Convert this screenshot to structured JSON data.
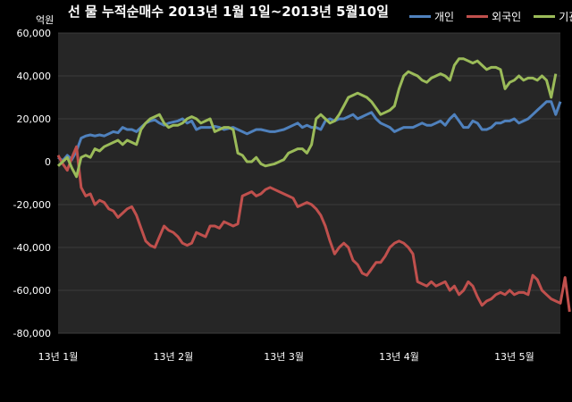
{
  "chart_data": {
    "type": "line",
    "title": "선 물 누적순매수 2013년 1월 1일~2013년 5월10일",
    "unit": "억원",
    "ylim": [
      -80000,
      60000
    ],
    "yticks": [
      "60,000",
      "40,000",
      "20,000",
      "0",
      "-20,000",
      "-40,000",
      "-60,000",
      "-80,000"
    ],
    "yticks_values": [
      60000,
      40000,
      20000,
      0,
      -20000,
      -40000,
      -60000,
      -80000
    ],
    "x_tick_labels": [
      "13년 1월",
      "13년 2월",
      "13년 3월",
      "13년 4월",
      "13년 5월"
    ],
    "x_tick_index": [
      0,
      25,
      49,
      74,
      99
    ],
    "grid": true,
    "legend_position": "top-right",
    "series": [
      {
        "name": "개인",
        "color": "#4f81bd",
        "values": [
          2000,
          500,
          3000,
          1000,
          5000,
          11000,
          12000,
          12500,
          12000,
          12500,
          12000,
          13000,
          14000,
          13500,
          16000,
          15000,
          15000,
          14000,
          16000,
          18000,
          19000,
          19500,
          18000,
          17000,
          18000,
          18500,
          19000,
          20000,
          18000,
          19000,
          15000,
          16000,
          16000,
          16000,
          16500,
          16000,
          15000,
          15500,
          16000,
          15000,
          14000,
          13000,
          14000,
          15000,
          15000,
          14500,
          14000,
          14000,
          14500,
          15000,
          16000,
          17000,
          18000,
          16000,
          17000,
          16000,
          16000,
          15000,
          19000,
          20000,
          19000,
          20000,
          20000,
          21000,
          22000,
          20000,
          21000,
          22000,
          23000,
          20000,
          18000,
          17000,
          16000,
          14000,
          15000,
          16000,
          16000,
          16000,
          17000,
          18000,
          17000,
          17000,
          18000,
          19000,
          17000,
          20000,
          22000,
          19000,
          16000,
          16000,
          19000,
          18000,
          15000,
          15000,
          16000,
          18000,
          18000,
          19000,
          19000,
          20000,
          18000,
          19000,
          20000,
          22000,
          24000,
          26000,
          28000,
          28000,
          22000,
          28000
        ]
      },
      {
        "name": "외국인",
        "color": "#c0504d",
        "values": [
          3000,
          -1000,
          -4000,
          2000,
          7000,
          -12000,
          -16000,
          -15000,
          -20000,
          -18000,
          -19000,
          -22000,
          -23000,
          -26000,
          -24000,
          -22000,
          -21000,
          -25000,
          -31000,
          -37000,
          -39000,
          -40000,
          -35000,
          -30000,
          -32000,
          -33000,
          -35000,
          -38000,
          -39000,
          -38000,
          -33000,
          -34000,
          -35000,
          -30000,
          -30000,
          -31000,
          -28000,
          -29000,
          -30000,
          -29000,
          -16000,
          -15000,
          -14000,
          -16000,
          -15000,
          -13000,
          -12000,
          -13000,
          -14000,
          -15000,
          -16000,
          -17000,
          -21000,
          -20000,
          -19000,
          -20000,
          -22000,
          -25000,
          -30000,
          -37000,
          -43000,
          -40000,
          -38000,
          -40000,
          -46000,
          -48000,
          -52000,
          -53000,
          -50000,
          -47000,
          -47000,
          -44000,
          -40000,
          -38000,
          -37000,
          -38000,
          -40000,
          -43000,
          -56000,
          -57000,
          -58000,
          -56000,
          -58000,
          -57000,
          -56000,
          -60000,
          -58000,
          -62000,
          -60000,
          -56000,
          -58000,
          -63000,
          -67000,
          -65000,
          -64000,
          -62000,
          -61000,
          -62000,
          -60000,
          -62000,
          -61000,
          -61000,
          -62000,
          -53000,
          -55000,
          -60000,
          -62000,
          -64000,
          -65000,
          -66000,
          -54000,
          -70000
        ]
      },
      {
        "name": "기관",
        "color": "#9bbb59",
        "values": [
          -2000,
          0,
          2000,
          -3000,
          -7000,
          2000,
          3000,
          2000,
          6000,
          5000,
          7000,
          8000,
          9000,
          10000,
          8000,
          10000,
          9000,
          8000,
          15000,
          18000,
          20000,
          21000,
          22000,
          18000,
          16000,
          17000,
          17000,
          18000,
          20000,
          21000,
          20000,
          18000,
          19000,
          20000,
          14000,
          15000,
          16000,
          16000,
          15000,
          4000,
          3000,
          0,
          0,
          2000,
          -1000,
          -2000,
          -1500,
          -1000,
          0,
          1000,
          4000,
          5000,
          6000,
          6000,
          4000,
          8000,
          20000,
          22000,
          20000,
          18000,
          19000,
          22000,
          26000,
          30000,
          31000,
          32000,
          31000,
          30000,
          28000,
          25000,
          22000,
          23000,
          24000,
          26000,
          34000,
          40000,
          42000,
          41000,
          40000,
          38000,
          37000,
          39000,
          40000,
          41000,
          40000,
          38000,
          45000,
          48000,
          48000,
          47000,
          46000,
          47000,
          45000,
          43000,
          44000,
          44000,
          43000,
          34000,
          37000,
          38000,
          40000,
          38000,
          39000,
          39000,
          38000,
          40000,
          38000,
          30000,
          41000
        ]
      }
    ]
  }
}
